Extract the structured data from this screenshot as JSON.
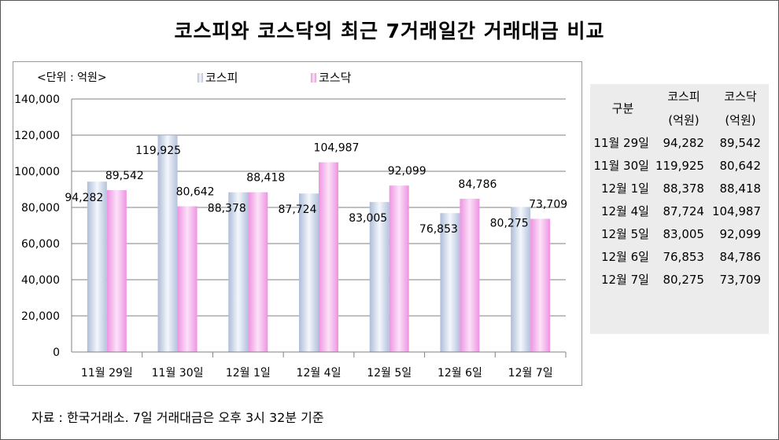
{
  "title": "코스피와 코스닥의 최근 7거래일간 거래대금 비교",
  "chart_data": {
    "type": "bar",
    "unit_label": "<단위 : 억원>",
    "categories": [
      "11월 29일",
      "11월 30일",
      "12월 1일",
      "12월 4일",
      "12월 5일",
      "12월 6일",
      "12월 7일"
    ],
    "series": [
      {
        "name": "코스피",
        "values": [
          94282,
          119925,
          88378,
          87724,
          83005,
          76853,
          80275
        ],
        "color": "#c9d6ea"
      },
      {
        "name": "코스닥",
        "values": [
          89542,
          80642,
          88418,
          104987,
          92099,
          84786,
          73709
        ],
        "color": "#f0a6e6"
      }
    ],
    "value_labels": [
      [
        "94,282",
        "119,925",
        "88,378",
        "87,724",
        "83,005",
        "76,853",
        "80,275"
      ],
      [
        "89,542",
        "80,642",
        "88,418",
        "104,987",
        "92,099",
        "84,786",
        "73,709"
      ]
    ],
    "yticks": [
      "0",
      "20,000",
      "40,000",
      "60,000",
      "80,000",
      "100,000",
      "120,000",
      "140,000"
    ],
    "ylim": [
      0,
      140000
    ],
    "grid": true,
    "legend": "top"
  },
  "table": {
    "header_row1": [
      "구분",
      "코스피",
      "코스닥"
    ],
    "header_row2": [
      "",
      "(억원)",
      "(억원)"
    ],
    "rows": [
      [
        "11월 29일",
        "94,282",
        "89,542"
      ],
      [
        "11월 30일",
        "119,925",
        "80,642"
      ],
      [
        "12월 1일",
        "88,378",
        "88,418"
      ],
      [
        "12월 4일",
        "87,724",
        "104,987"
      ],
      [
        "12월 5일",
        "83,005",
        "92,099"
      ],
      [
        "12월 6일",
        "76,853",
        "84,786"
      ],
      [
        "12월 7일",
        "80,275",
        "73,709"
      ]
    ]
  },
  "source": "자료 : 한국거래소. 7일 거래대금은 오후 3시 32분 기준"
}
